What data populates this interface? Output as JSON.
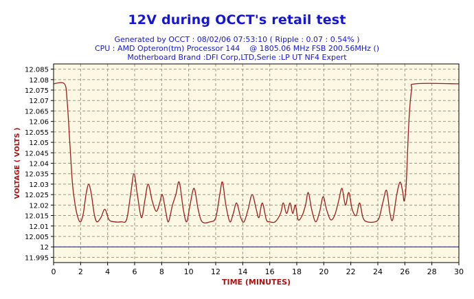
{
  "header": {
    "title": "12V during OCCT's retail test",
    "line1": "Generated by OCCT : 08/02/06 07:53:10 ( Ripple : 0.07 : 0.54% )",
    "line2": "CPU : AMD Opteron(tm) Processor 144    @ 1805.06 MHz FSB 200.56MHz ()",
    "line3": "Motherboard Brand :DFI Corp,LTD,Serie :LP UT NF4 Expert"
  },
  "colors": {
    "plot_background": "#fcf8e4",
    "grid": "#a09880",
    "voltage_line": "#9c1c1c",
    "reference_line": "#2020c8",
    "axis_label": "#b01010",
    "text": "#000000"
  },
  "chart_data": {
    "type": "line",
    "xlabel": "TIME (MINUTES)",
    "ylabel": "VOLTAGE ( VOLTS )",
    "xlim": [
      0,
      30
    ],
    "ylim": [
      11.9925,
      12.0875
    ],
    "grid": true,
    "x_ticks": [
      0,
      2,
      4,
      6,
      8,
      10,
      12,
      14,
      16,
      18,
      20,
      22,
      24,
      26,
      28,
      30
    ],
    "x_tick_labels": [
      "0",
      "2",
      "4",
      "6",
      "8",
      "10",
      "12",
      "14",
      "16",
      "18",
      "20",
      "22",
      "24",
      "26",
      "28",
      "30"
    ],
    "y_ticks": [
      11.995,
      12.0,
      12.005,
      12.01,
      12.015,
      12.02,
      12.025,
      12.03,
      12.035,
      12.04,
      12.045,
      12.05,
      12.055,
      12.06,
      12.065,
      12.07,
      12.075,
      12.08,
      12.085
    ],
    "y_tick_labels": [
      "11.995",
      "12",
      "12.005",
      "12.01",
      "12.015",
      "12.02",
      "12.025",
      "12.03",
      "12.035",
      "12.04",
      "12.045",
      "12.05",
      "12.055",
      "12.06",
      "12.065",
      "12.07",
      "12.075",
      "12.08",
      "12.085"
    ],
    "reference_line": {
      "y": 12.0
    },
    "series": [
      {
        "points": [
          [
            0,
            12.078
          ],
          [
            0.8,
            12.078
          ],
          [
            1.0,
            12.07
          ],
          [
            1.2,
            12.05
          ],
          [
            1.4,
            12.03
          ],
          [
            1.6,
            12.02
          ],
          [
            1.8,
            12.014
          ],
          [
            2.0,
            12.012
          ],
          [
            2.2,
            12.016
          ],
          [
            2.4,
            12.025
          ],
          [
            2.6,
            12.03
          ],
          [
            2.8,
            12.025
          ],
          [
            3.0,
            12.016
          ],
          [
            3.2,
            12.012
          ],
          [
            3.5,
            12.014
          ],
          [
            3.8,
            12.018
          ],
          [
            4.1,
            12.013
          ],
          [
            4.5,
            12.012
          ],
          [
            5.0,
            12.012
          ],
          [
            5.4,
            12.013
          ],
          [
            5.7,
            12.025
          ],
          [
            5.95,
            12.035
          ],
          [
            6.2,
            12.025
          ],
          [
            6.5,
            12.014
          ],
          [
            6.75,
            12.022
          ],
          [
            7.0,
            12.03
          ],
          [
            7.3,
            12.022
          ],
          [
            7.6,
            12.017
          ],
          [
            7.85,
            12.021
          ],
          [
            8.05,
            12.025
          ],
          [
            8.3,
            12.017
          ],
          [
            8.5,
            12.012
          ],
          [
            8.8,
            12.02
          ],
          [
            9.05,
            12.025
          ],
          [
            9.3,
            12.031
          ],
          [
            9.6,
            12.018
          ],
          [
            9.85,
            12.012
          ],
          [
            10.1,
            12.02
          ],
          [
            10.4,
            12.028
          ],
          [
            10.7,
            12.018
          ],
          [
            11.0,
            12.012
          ],
          [
            11.6,
            12.012
          ],
          [
            12.0,
            12.014
          ],
          [
            12.3,
            12.025
          ],
          [
            12.5,
            12.031
          ],
          [
            12.75,
            12.02
          ],
          [
            13.05,
            12.012
          ],
          [
            13.3,
            12.016
          ],
          [
            13.55,
            12.021
          ],
          [
            13.85,
            12.014
          ],
          [
            14.1,
            12.012
          ],
          [
            14.4,
            12.018
          ],
          [
            14.7,
            12.025
          ],
          [
            15.0,
            12.018
          ],
          [
            15.2,
            12.014
          ],
          [
            15.45,
            12.021
          ],
          [
            15.75,
            12.013
          ],
          [
            16.0,
            12.012
          ],
          [
            16.4,
            12.012
          ],
          [
            16.8,
            12.016
          ],
          [
            17.0,
            12.021
          ],
          [
            17.25,
            12.016
          ],
          [
            17.5,
            12.021
          ],
          [
            17.7,
            12.016
          ],
          [
            17.9,
            12.02
          ],
          [
            18.1,
            12.013
          ],
          [
            18.4,
            12.015
          ],
          [
            18.65,
            12.02
          ],
          [
            18.85,
            12.026
          ],
          [
            19.1,
            12.018
          ],
          [
            19.4,
            12.012
          ],
          [
            19.7,
            12.017
          ],
          [
            19.95,
            12.024
          ],
          [
            20.2,
            12.018
          ],
          [
            20.5,
            12.013
          ],
          [
            20.8,
            12.015
          ],
          [
            21.1,
            12.022
          ],
          [
            21.35,
            12.028
          ],
          [
            21.6,
            12.02
          ],
          [
            21.85,
            12.026
          ],
          [
            22.1,
            12.018
          ],
          [
            22.4,
            12.015
          ],
          [
            22.65,
            12.021
          ],
          [
            22.9,
            12.014
          ],
          [
            23.2,
            12.012
          ],
          [
            23.8,
            12.012
          ],
          [
            24.1,
            12.014
          ],
          [
            24.4,
            12.022
          ],
          [
            24.65,
            12.027
          ],
          [
            24.9,
            12.016
          ],
          [
            25.1,
            12.013
          ],
          [
            25.4,
            12.025
          ],
          [
            25.65,
            12.031
          ],
          [
            25.85,
            12.026
          ],
          [
            25.95,
            12.022
          ],
          [
            26.1,
            12.03
          ],
          [
            26.3,
            12.06
          ],
          [
            26.5,
            12.075
          ],
          [
            26.8,
            12.078
          ],
          [
            30,
            12.078
          ]
        ]
      }
    ]
  }
}
